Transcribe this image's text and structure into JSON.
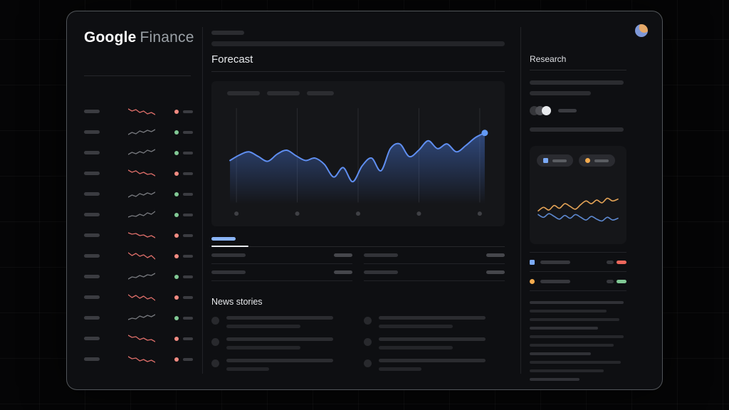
{
  "app": {
    "brand": {
      "primary": "Google",
      "secondary": "Finance"
    }
  },
  "sections": {
    "forecast": "Forecast",
    "news": "News stories",
    "research": "Research"
  },
  "colors": {
    "chart_blue": "#5f8ef0",
    "chart_blue_dot": "#639af5",
    "chart_blue_fill": "#4b7ce0",
    "tab_active_blue": "#8ab4f8",
    "spark_down": "#dd6e69",
    "spark_up": "#77797e",
    "dot_negative": "#f28b82",
    "dot_positive": "#81c995",
    "legend_blue": "#7baaf7",
    "legend_yellow": "#f3ab4e",
    "marker_red": "#ee675c",
    "marker_green": "#81c995",
    "gridline": "#2a2b2f",
    "axis_dot": "#3f4045"
  },
  "watchlist": {
    "rows": [
      {
        "trend": "down",
        "values": [
          3,
          6,
          4,
          8,
          6,
          10,
          8,
          11
        ]
      },
      {
        "trend": "up",
        "values": [
          10,
          7,
          9,
          5,
          7,
          4,
          6,
          3
        ]
      },
      {
        "trend": "up",
        "values": [
          9,
          6,
          8,
          5,
          7,
          3,
          5,
          2
        ]
      },
      {
        "trend": "down",
        "values": [
          2,
          5,
          3,
          7,
          5,
          8,
          7,
          10
        ]
      },
      {
        "trend": "up",
        "values": [
          11,
          8,
          10,
          6,
          8,
          5,
          7,
          4
        ]
      },
      {
        "trend": "up",
        "values": [
          10,
          8,
          9,
          6,
          8,
          4,
          6,
          2
        ]
      },
      {
        "trend": "down",
        "values": [
          3,
          5,
          4,
          7,
          6,
          9,
          7,
          10
        ]
      },
      {
        "trend": "down",
        "values": [
          2,
          6,
          3,
          7,
          5,
          9,
          6,
          11
        ]
      },
      {
        "trend": "up",
        "values": [
          10,
          7,
          8,
          5,
          7,
          4,
          5,
          2
        ]
      },
      {
        "trend": "down",
        "values": [
          3,
          7,
          4,
          8,
          5,
          9,
          7,
          11
        ]
      },
      {
        "trend": "up",
        "values": [
          9,
          7,
          8,
          4,
          6,
          3,
          5,
          2
        ]
      },
      {
        "trend": "down",
        "values": [
          2,
          5,
          4,
          8,
          6,
          9,
          8,
          11
        ]
      },
      {
        "trend": "down",
        "values": [
          3,
          6,
          5,
          9,
          7,
          10,
          8,
          11
        ]
      }
    ]
  },
  "forecast_chart": {
    "type": "area",
    "values": [
      55,
      62,
      66,
      60,
      54,
      63,
      68,
      61,
      55,
      58,
      50,
      34,
      46,
      28,
      48,
      58,
      42,
      70,
      76,
      60,
      68,
      80,
      70,
      76,
      66,
      74,
      84,
      90
    ],
    "gridline_count": 5,
    "endpoint_marker": true
  },
  "research_chart": {
    "type": "line",
    "series": [
      {
        "name": "series-orange",
        "color": "#e2a256",
        "values": [
          48,
          56,
          50,
          60,
          54,
          64,
          58,
          52,
          62,
          70,
          64,
          72,
          66,
          76,
          70,
          74
        ]
      },
      {
        "name": "series-blue",
        "color": "#5d88cf",
        "values": [
          40,
          34,
          42,
          36,
          30,
          38,
          32,
          40,
          34,
          28,
          36,
          30,
          26,
          34,
          28,
          32
        ]
      }
    ]
  }
}
